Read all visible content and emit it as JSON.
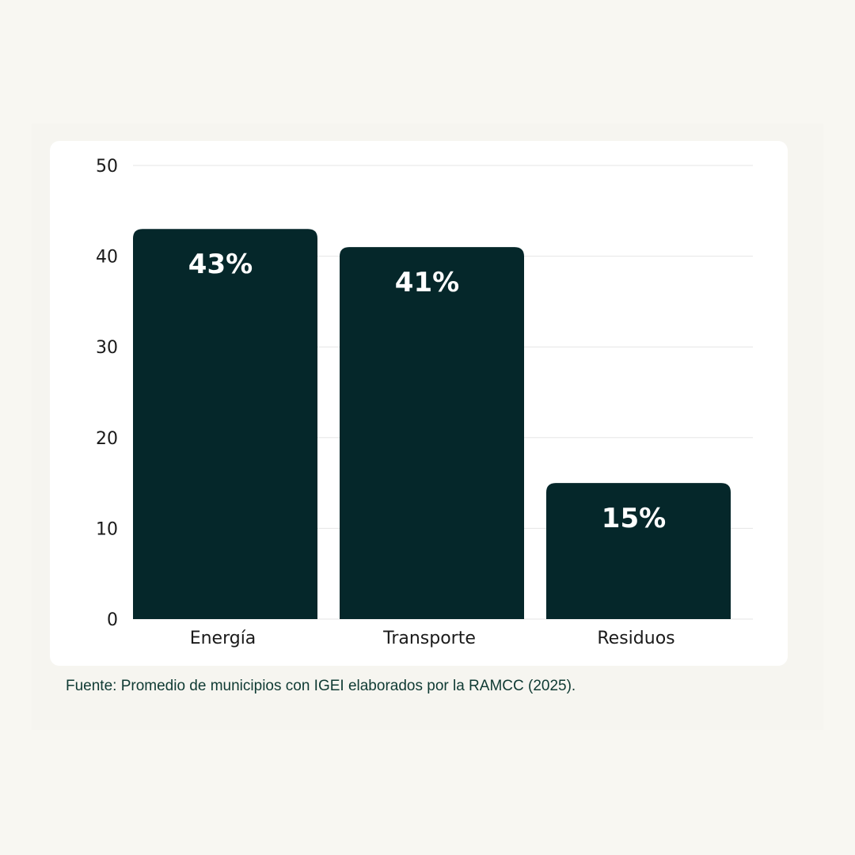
{
  "chart_data": {
    "type": "bar",
    "categories": [
      "Energía",
      "Transporte",
      "Residuos"
    ],
    "values": [
      43,
      41,
      15
    ],
    "data_labels": [
      "43%",
      "41%",
      "15%"
    ],
    "yticks": [
      "0",
      "10",
      "20",
      "30",
      "40",
      "50"
    ],
    "ylim": [
      0,
      50
    ],
    "grid": true,
    "bar_color": "#05272a",
    "grid_color": "#e6e6e6"
  },
  "source": "Fuente: Promedio de municipios con IGEI elaborados por la RAMCC (2025)."
}
